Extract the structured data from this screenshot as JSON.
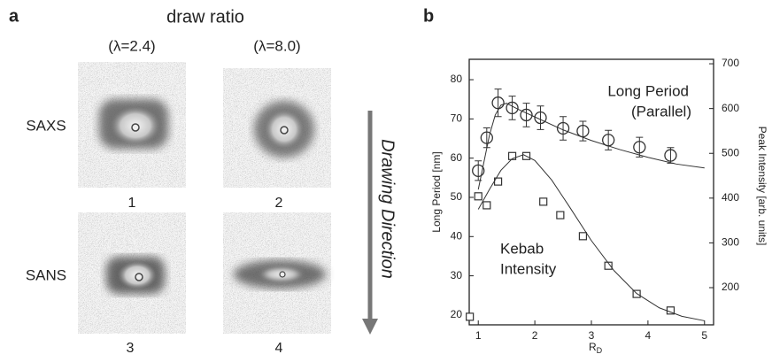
{
  "panel_a": {
    "label": "a",
    "title": "draw ratio",
    "columns": [
      "(λ=2.4)",
      "(λ=8.0)"
    ],
    "rows": [
      "SAXS",
      "SANS"
    ],
    "image_numbers": [
      "1",
      "2",
      "3",
      "4"
    ],
    "arrow_label": "Drawing Direction"
  },
  "chart_data": {
    "type": "scatter",
    "panel_label": "b",
    "xlabel": "R",
    "xlabel_sub": "D",
    "ylabel": "Long Period [nm]",
    "y2label": "Peak Intensity [arb. units]",
    "xlim": [
      0.84,
      5.16
    ],
    "xticks": [
      1,
      2,
      3,
      4,
      5
    ],
    "ylim": [
      17.5,
      85.2
    ],
    "yticks": [
      20,
      30,
      40,
      50,
      60,
      70,
      80
    ],
    "y2lim": [
      117,
      710
    ],
    "y2ticks": [
      200,
      300,
      400,
      500,
      600,
      700
    ],
    "annotations": [
      [
        "Long Period",
        "(Parallel)"
      ],
      [
        "Kebab",
        "Intensity"
      ]
    ],
    "series": [
      {
        "marker": "circle",
        "color": "#333333",
        "x": [
          1.0,
          1.15,
          1.35,
          1.6,
          1.85,
          2.1,
          2.5,
          2.85,
          3.3,
          3.85,
          4.4
        ],
        "values": [
          56.8,
          65.2,
          74.1,
          72.8,
          71.0,
          70.3,
          67.6,
          66.9,
          64.6,
          62.8,
          60.7
        ],
        "errors": [
          2.5,
          2.5,
          3.5,
          3,
          3,
          3,
          3,
          2.5,
          2.5,
          2.5,
          2
        ]
      },
      {
        "marker": "square",
        "color": "#333333",
        "axis": "y2",
        "x": [
          0.85,
          1.0,
          1.15,
          1.35,
          1.6,
          1.85,
          2.15,
          2.45,
          2.85,
          3.3,
          3.8,
          4.4
        ],
        "values": [
          135,
          404,
          384,
          437,
          494,
          494,
          392,
          362,
          315,
          249,
          186,
          149
        ]
      },
      {
        "marker": "none",
        "color": "#333333",
        "x": [
          1.0,
          1.1,
          1.2,
          1.3,
          1.4,
          1.5,
          1.7,
          2.0,
          2.5,
          3.0,
          3.5,
          4.0,
          4.5,
          5.0
        ],
        "values": [
          52,
          59,
          66,
          71,
          73.5,
          74,
          72.5,
          70.5,
          67.2,
          64.5,
          62.2,
          60.2,
          58.5,
          57.5
        ]
      },
      {
        "marker": "none",
        "color": "#333333",
        "axis": "y2",
        "x": [
          1.0,
          1.2,
          1.4,
          1.6,
          1.8,
          2.0,
          2.3,
          2.6,
          3.0,
          3.4,
          3.8,
          4.2,
          4.6,
          5.0
        ],
        "values": [
          375,
          420,
          462,
          488,
          497,
          484,
          440,
          383,
          305,
          238,
          187,
          155,
          136,
          126
        ]
      }
    ]
  }
}
